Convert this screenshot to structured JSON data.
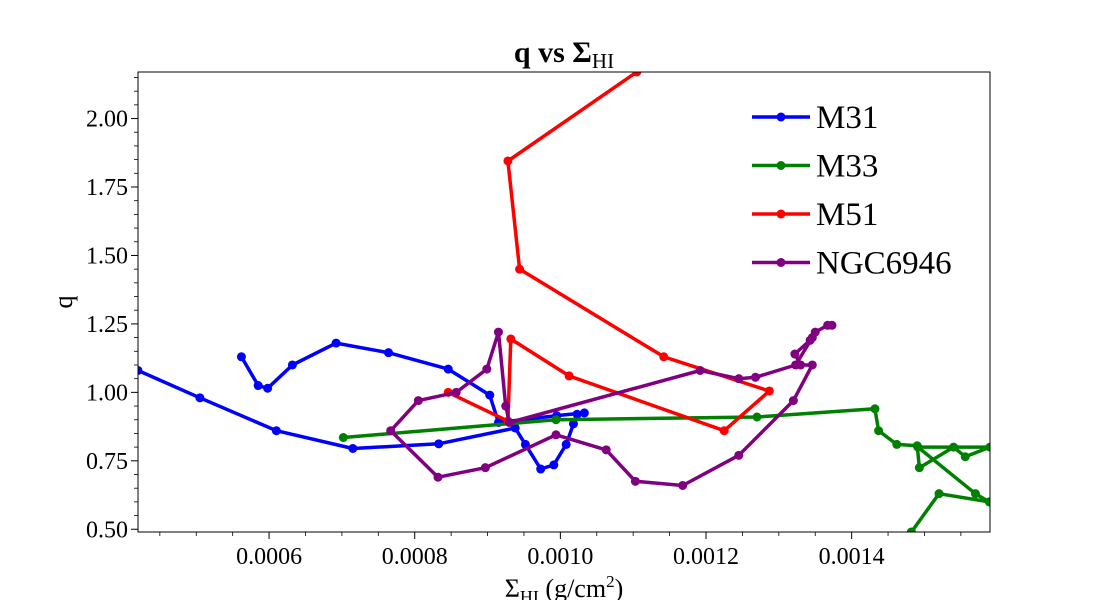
{
  "chart_data": {
    "type": "line",
    "title": {
      "main": "q vs Σ",
      "sub": "HI"
    },
    "xlabel": {
      "main": "Σ",
      "sub": "HI",
      "units": " (g/cm",
      "sup": "2",
      "close": ")"
    },
    "ylabel": "q",
    "xlim": [
      0.00042,
      0.00159
    ],
    "ylim": [
      0.49,
      2.17
    ],
    "xticks": [
      0.0006,
      0.0008,
      0.001,
      0.0012,
      0.0014
    ],
    "xtick_labels": [
      "0.0006",
      "0.0008",
      "0.0010",
      "0.0012",
      "0.0014"
    ],
    "yticks": [
      0.5,
      0.75,
      1.0,
      1.25,
      1.5,
      1.75,
      2.0
    ],
    "ytick_labels": [
      "0.50",
      "0.75",
      "1.00",
      "1.25",
      "1.50",
      "1.75",
      "2.00"
    ],
    "legend_position": "top-right",
    "series": [
      {
        "name": "M31",
        "color": "#0000ff",
        "x": [
          0.00042,
          0.000505,
          0.00061,
          0.000715,
          0.000833,
          0.000938,
          0.000952,
          0.000973,
          0.000991,
          0.001008,
          0.001018,
          0.001023,
          0.001033,
          0.000995,
          0.000915,
          0.000903,
          0.000846,
          0.000764,
          0.000692,
          0.000632,
          0.000598,
          0.000585,
          0.000562
        ],
        "y": [
          1.08,
          0.98,
          0.86,
          0.795,
          0.812,
          0.87,
          0.81,
          0.72,
          0.735,
          0.81,
          0.885,
          0.92,
          0.925,
          0.915,
          0.89,
          0.99,
          1.085,
          1.145,
          1.18,
          1.1,
          1.015,
          1.025,
          1.13
        ]
      },
      {
        "name": "M33",
        "color": "#008000",
        "x": [
          0.000702,
          0.000994,
          0.00127,
          0.001432,
          0.001437,
          0.001462,
          0.00149,
          0.001493,
          0.00154,
          0.001556,
          0.00159,
          0.001491,
          0.00157,
          0.001589,
          0.00152,
          0.001482,
          0.00147
        ],
        "y": [
          0.835,
          0.9,
          0.91,
          0.94,
          0.86,
          0.81,
          0.805,
          0.725,
          0.8,
          0.765,
          0.8,
          0.8,
          0.63,
          0.6,
          0.63,
          0.49,
          0.45
        ]
      },
      {
        "name": "M51",
        "color": "#ff0000",
        "x": [
          0.000846,
          0.000928,
          0.000932,
          0.001012,
          0.001225,
          0.001287,
          0.001142,
          0.000944,
          0.000928,
          0.001105,
          0.00113
        ],
        "y": [
          1.0,
          0.895,
          1.195,
          1.06,
          0.86,
          1.005,
          1.13,
          1.45,
          1.845,
          2.17,
          2.25
        ]
      },
      {
        "name": "NGC6946",
        "color": "#800080",
        "x": [
          0.001373,
          0.001367,
          0.00135,
          0.001343,
          0.001322,
          0.00133,
          0.001346,
          0.00132,
          0.001245,
          0.001168,
          0.001103,
          0.001063,
          0.000994,
          0.000897,
          0.000832,
          0.000767,
          0.000805,
          0.000857,
          0.000899,
          0.000915,
          0.000925,
          0.00093,
          0.001192,
          0.001245,
          0.001268,
          0.001323,
          0.001346
        ],
        "y": [
          1.245,
          1.245,
          1.22,
          1.19,
          1.14,
          1.1,
          1.1,
          0.97,
          0.77,
          0.66,
          0.675,
          0.79,
          0.845,
          0.725,
          0.69,
          0.86,
          0.97,
          1.0,
          1.085,
          1.22,
          0.95,
          0.89,
          1.08,
          1.05,
          1.055,
          1.1,
          1.2
        ]
      }
    ]
  }
}
